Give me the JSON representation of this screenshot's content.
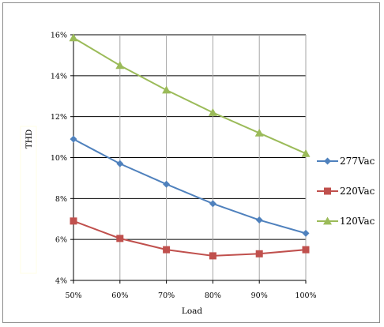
{
  "chart_data": {
    "type": "line",
    "categories": [
      "50%",
      "60%",
      "70%",
      "80%",
      "90%",
      "100%"
    ],
    "xlabel": "Load",
    "ylabel": "THD",
    "ylim": [
      4,
      16
    ],
    "yticks": [
      "4%",
      "6%",
      "8%",
      "10%",
      "12%",
      "14%",
      "16%"
    ],
    "ytick_values": [
      4,
      6,
      8,
      10,
      12,
      14,
      16
    ],
    "grid": true,
    "legend_position": "right",
    "series": [
      {
        "name": "277Vac",
        "color": "#4f81bd",
        "marker": "diamond",
        "values": [
          10.9,
          9.7,
          8.7,
          7.75,
          6.95,
          6.3
        ]
      },
      {
        "name": "220Vac",
        "color": "#c0504d",
        "marker": "square",
        "values": [
          6.9,
          6.05,
          5.5,
          5.2,
          5.3,
          5.5
        ]
      },
      {
        "name": "120Vac",
        "color": "#9bbb59",
        "marker": "triangle",
        "values": [
          15.85,
          14.5,
          13.3,
          12.2,
          11.2,
          10.2
        ]
      }
    ]
  }
}
